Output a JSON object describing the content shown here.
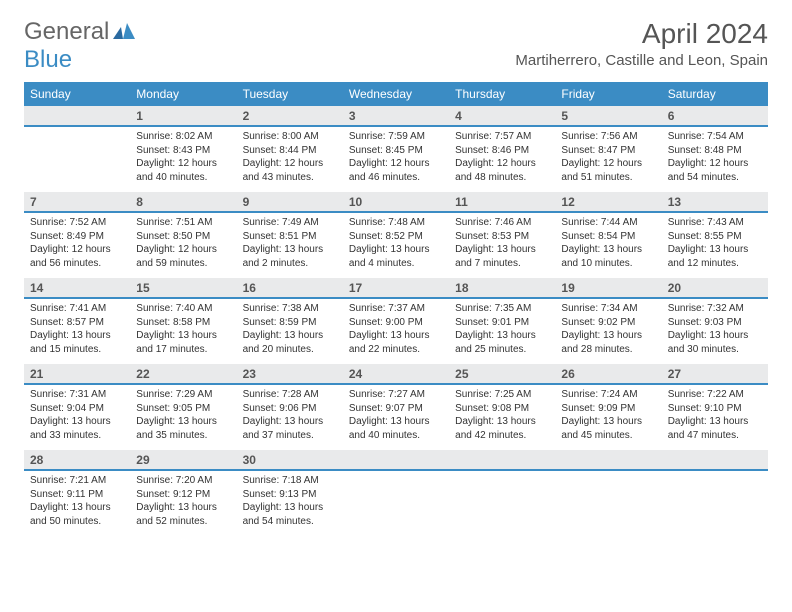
{
  "logo": {
    "line1": "General",
    "line2": "Blue"
  },
  "title": "April 2024",
  "location": "Martiherrero, Castille and Leon, Spain",
  "colors": {
    "header_bg": "#3b8cc4",
    "header_text": "#ffffff",
    "daynum_bg": "#e9eaeb",
    "daynum_border": "#3b8cc4",
    "body_text": "#333333",
    "title_text": "#555555",
    "page_bg": "#ffffff"
  },
  "typography": {
    "title_fontsize": 28,
    "location_fontsize": 15,
    "dow_fontsize": 12,
    "daynum_fontsize": 12,
    "cell_fontsize": 10
  },
  "days_of_week": [
    "Sunday",
    "Monday",
    "Tuesday",
    "Wednesday",
    "Thursday",
    "Friday",
    "Saturday"
  ],
  "weeks": [
    {
      "nums": [
        "",
        "1",
        "2",
        "3",
        "4",
        "5",
        "6"
      ],
      "cells": [
        {},
        {
          "sunrise": "Sunrise: 8:02 AM",
          "sunset": "Sunset: 8:43 PM",
          "daylight": "Daylight: 12 hours and 40 minutes."
        },
        {
          "sunrise": "Sunrise: 8:00 AM",
          "sunset": "Sunset: 8:44 PM",
          "daylight": "Daylight: 12 hours and 43 minutes."
        },
        {
          "sunrise": "Sunrise: 7:59 AM",
          "sunset": "Sunset: 8:45 PM",
          "daylight": "Daylight: 12 hours and 46 minutes."
        },
        {
          "sunrise": "Sunrise: 7:57 AM",
          "sunset": "Sunset: 8:46 PM",
          "daylight": "Daylight: 12 hours and 48 minutes."
        },
        {
          "sunrise": "Sunrise: 7:56 AM",
          "sunset": "Sunset: 8:47 PM",
          "daylight": "Daylight: 12 hours and 51 minutes."
        },
        {
          "sunrise": "Sunrise: 7:54 AM",
          "sunset": "Sunset: 8:48 PM",
          "daylight": "Daylight: 12 hours and 54 minutes."
        }
      ]
    },
    {
      "nums": [
        "7",
        "8",
        "9",
        "10",
        "11",
        "12",
        "13"
      ],
      "cells": [
        {
          "sunrise": "Sunrise: 7:52 AM",
          "sunset": "Sunset: 8:49 PM",
          "daylight": "Daylight: 12 hours and 56 minutes."
        },
        {
          "sunrise": "Sunrise: 7:51 AM",
          "sunset": "Sunset: 8:50 PM",
          "daylight": "Daylight: 12 hours and 59 minutes."
        },
        {
          "sunrise": "Sunrise: 7:49 AM",
          "sunset": "Sunset: 8:51 PM",
          "daylight": "Daylight: 13 hours and 2 minutes."
        },
        {
          "sunrise": "Sunrise: 7:48 AM",
          "sunset": "Sunset: 8:52 PM",
          "daylight": "Daylight: 13 hours and 4 minutes."
        },
        {
          "sunrise": "Sunrise: 7:46 AM",
          "sunset": "Sunset: 8:53 PM",
          "daylight": "Daylight: 13 hours and 7 minutes."
        },
        {
          "sunrise": "Sunrise: 7:44 AM",
          "sunset": "Sunset: 8:54 PM",
          "daylight": "Daylight: 13 hours and 10 minutes."
        },
        {
          "sunrise": "Sunrise: 7:43 AM",
          "sunset": "Sunset: 8:55 PM",
          "daylight": "Daylight: 13 hours and 12 minutes."
        }
      ]
    },
    {
      "nums": [
        "14",
        "15",
        "16",
        "17",
        "18",
        "19",
        "20"
      ],
      "cells": [
        {
          "sunrise": "Sunrise: 7:41 AM",
          "sunset": "Sunset: 8:57 PM",
          "daylight": "Daylight: 13 hours and 15 minutes."
        },
        {
          "sunrise": "Sunrise: 7:40 AM",
          "sunset": "Sunset: 8:58 PM",
          "daylight": "Daylight: 13 hours and 17 minutes."
        },
        {
          "sunrise": "Sunrise: 7:38 AM",
          "sunset": "Sunset: 8:59 PM",
          "daylight": "Daylight: 13 hours and 20 minutes."
        },
        {
          "sunrise": "Sunrise: 7:37 AM",
          "sunset": "Sunset: 9:00 PM",
          "daylight": "Daylight: 13 hours and 22 minutes."
        },
        {
          "sunrise": "Sunrise: 7:35 AM",
          "sunset": "Sunset: 9:01 PM",
          "daylight": "Daylight: 13 hours and 25 minutes."
        },
        {
          "sunrise": "Sunrise: 7:34 AM",
          "sunset": "Sunset: 9:02 PM",
          "daylight": "Daylight: 13 hours and 28 minutes."
        },
        {
          "sunrise": "Sunrise: 7:32 AM",
          "sunset": "Sunset: 9:03 PM",
          "daylight": "Daylight: 13 hours and 30 minutes."
        }
      ]
    },
    {
      "nums": [
        "21",
        "22",
        "23",
        "24",
        "25",
        "26",
        "27"
      ],
      "cells": [
        {
          "sunrise": "Sunrise: 7:31 AM",
          "sunset": "Sunset: 9:04 PM",
          "daylight": "Daylight: 13 hours and 33 minutes."
        },
        {
          "sunrise": "Sunrise: 7:29 AM",
          "sunset": "Sunset: 9:05 PM",
          "daylight": "Daylight: 13 hours and 35 minutes."
        },
        {
          "sunrise": "Sunrise: 7:28 AM",
          "sunset": "Sunset: 9:06 PM",
          "daylight": "Daylight: 13 hours and 37 minutes."
        },
        {
          "sunrise": "Sunrise: 7:27 AM",
          "sunset": "Sunset: 9:07 PM",
          "daylight": "Daylight: 13 hours and 40 minutes."
        },
        {
          "sunrise": "Sunrise: 7:25 AM",
          "sunset": "Sunset: 9:08 PM",
          "daylight": "Daylight: 13 hours and 42 minutes."
        },
        {
          "sunrise": "Sunrise: 7:24 AM",
          "sunset": "Sunset: 9:09 PM",
          "daylight": "Daylight: 13 hours and 45 minutes."
        },
        {
          "sunrise": "Sunrise: 7:22 AM",
          "sunset": "Sunset: 9:10 PM",
          "daylight": "Daylight: 13 hours and 47 minutes."
        }
      ]
    },
    {
      "nums": [
        "28",
        "29",
        "30",
        "",
        "",
        "",
        ""
      ],
      "cells": [
        {
          "sunrise": "Sunrise: 7:21 AM",
          "sunset": "Sunset: 9:11 PM",
          "daylight": "Daylight: 13 hours and 50 minutes."
        },
        {
          "sunrise": "Sunrise: 7:20 AM",
          "sunset": "Sunset: 9:12 PM",
          "daylight": "Daylight: 13 hours and 52 minutes."
        },
        {
          "sunrise": "Sunrise: 7:18 AM",
          "sunset": "Sunset: 9:13 PM",
          "daylight": "Daylight: 13 hours and 54 minutes."
        },
        {},
        {},
        {},
        {}
      ]
    }
  ]
}
